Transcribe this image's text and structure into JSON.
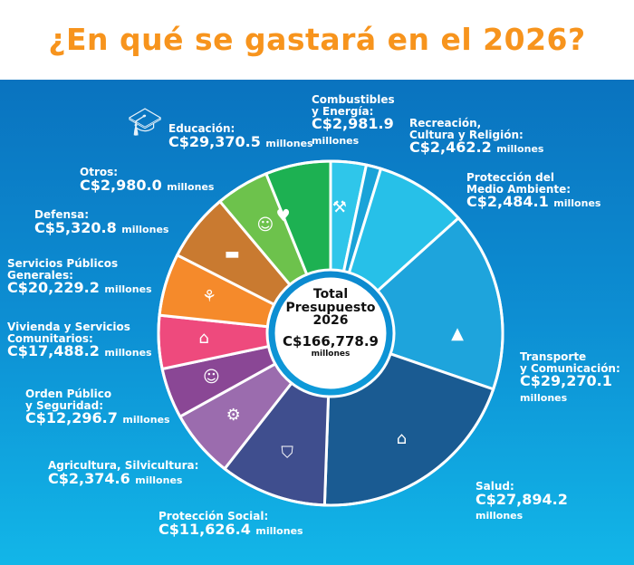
{
  "title": "¿En qué se gastará en el 2026?",
  "center": {
    "label": "Total\nPresupuesto\n2026",
    "amount": "C$166,778.9",
    "unit": "millones"
  },
  "chart_data": {
    "type": "pie",
    "title": "¿En qué se gastará en el 2026?",
    "unit": "millones de C$",
    "total": 166778.9,
    "categories": [
      "Combustibles y Energía",
      "Recreación, Cultura y Religión",
      "Protección del Medio Ambiente",
      "Transporte y Comunicación",
      "Salud",
      "Protección Social",
      "Agricultura, Silvicultura",
      "Orden Público y Seguridad",
      "Vivienda y Servicios Comunitarios",
      "Servicios Públicos Generales",
      "Defensa",
      "Otros",
      "Educación"
    ],
    "values": [
      2981.9,
      2462.2,
      2484.1,
      29270.1,
      27894.2,
      11626.4,
      2374.6,
      12296.7,
      17488.2,
      20229.2,
      5320.8,
      2980.0,
      29370.5
    ],
    "colors": [
      "#2fc6ea",
      "#1aa3d8",
      "#27c0e8",
      "#1ea4dc",
      "#1a5b92",
      "#3f4e8e",
      "#9b6cae",
      "#8a4795",
      "#ee4a7d",
      "#f58a2b",
      "#c97a30",
      "#6dc24c",
      "#1db152"
    ],
    "legend": "labels around chart"
  },
  "labels": [
    {
      "name": "Combustibles\ny Energía:",
      "amount": "C$2,981.9",
      "unit": "millones"
    },
    {
      "name": "Recreación,\nCultura y Religión:",
      "amount": "C$2,462.2",
      "unit": "millones"
    },
    {
      "name": "Protección del\nMedio Ambiente:",
      "amount": "C$2,484.1",
      "unit": "millones"
    },
    {
      "name": "Transporte\ny Comunicación:",
      "amount": "C$29,270.1",
      "unit": "millones"
    },
    {
      "name": "Salud:",
      "amount": "C$27,894.2",
      "unit": "millones"
    },
    {
      "name": "Protección Social:",
      "amount": "C$11,626.4",
      "unit": "millones"
    },
    {
      "name": "Agricultura, Silvicultura:",
      "amount": "C$2,374.6",
      "unit": "millones"
    },
    {
      "name": "Orden Público\ny Seguridad:",
      "amount": "C$12,296.7",
      "unit": "millones"
    },
    {
      "name": "Vivienda y Servicios\nComunitarios:",
      "amount": "C$17,488.2",
      "unit": "millones"
    },
    {
      "name": "Servicios Públicos\nGenerales:",
      "amount": "C$20,229.2",
      "unit": "millones"
    },
    {
      "name": "Defensa:",
      "amount": "C$5,320.8",
      "unit": "millones"
    },
    {
      "name": "Otros:",
      "amount": "C$2,980.0",
      "unit": "millones"
    },
    {
      "name": "Educación:",
      "amount": "C$29,370.5",
      "unit": "millones"
    }
  ]
}
